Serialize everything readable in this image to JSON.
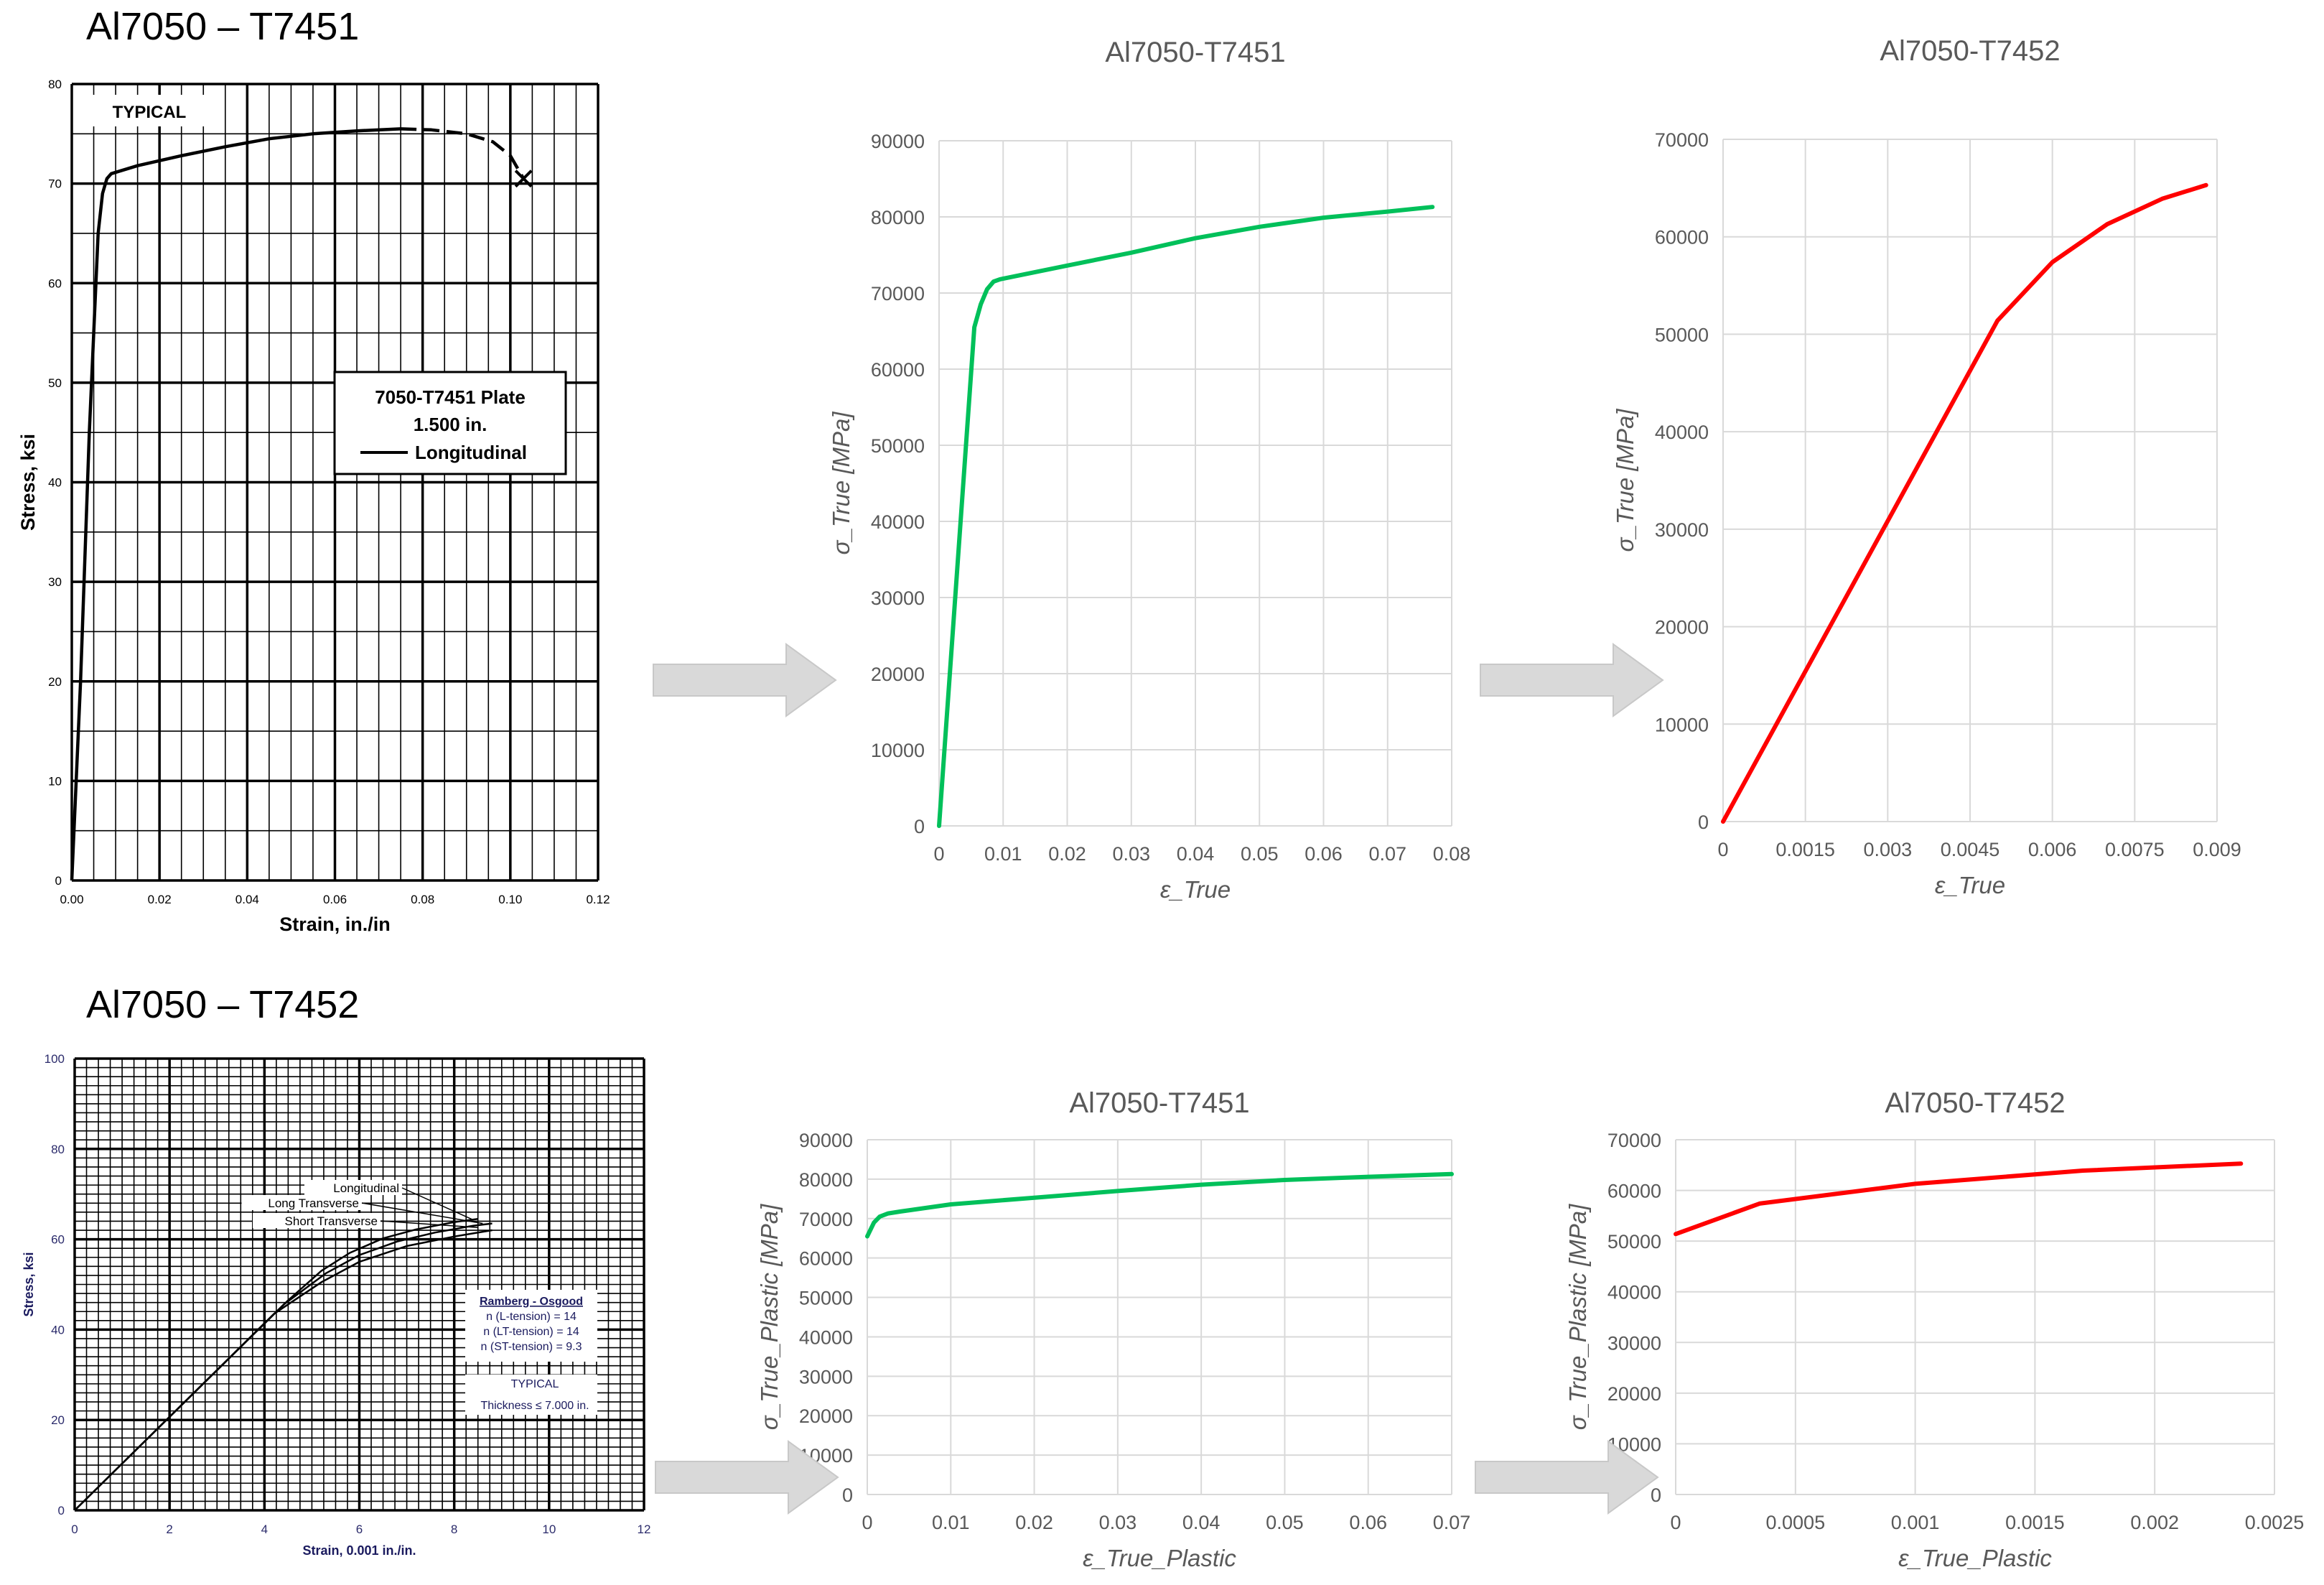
{
  "headings": {
    "top": "Al7050 – T7451",
    "bottom": "Al7050 – T7452"
  },
  "colors": {
    "green": "#00c05a",
    "red": "#ff0000",
    "arrow": "#d9d9d9",
    "excel_grid": "#d9d9d9",
    "excel_text": "#595959"
  },
  "chart_data": [
    {
      "id": "scan_t7451",
      "type": "line",
      "title": "",
      "xlabel": "Strain, in./in",
      "ylabel": "Stress, ksi",
      "xlim": [
        0,
        0.12
      ],
      "ylim": [
        0,
        80
      ],
      "x_ticks": [
        "0.00",
        "0.02",
        "0.04",
        "0.06",
        "0.08",
        "0.10",
        "0.12"
      ],
      "y_ticks": [
        "0",
        "10",
        "20",
        "30",
        "40",
        "50",
        "60",
        "70",
        "80"
      ],
      "grid": true,
      "annotations": [
        "TYPICAL"
      ],
      "legend_box": [
        "7050-T7451 Plate",
        "1.500 in.",
        "Longitudinal"
      ],
      "series": [
        {
          "style": "solid",
          "x": [
            0,
            0.002,
            0.004,
            0.006,
            0.007,
            0.008,
            0.009,
            0.015,
            0.025,
            0.035,
            0.045,
            0.055,
            0.065,
            0.075
          ],
          "y": [
            0,
            20,
            45,
            65,
            69,
            70.5,
            71,
            71.8,
            72.8,
            73.7,
            74.5,
            75.0,
            75.3,
            75.5
          ]
        },
        {
          "style": "dashed",
          "x": [
            0.075,
            0.082,
            0.09,
            0.096,
            0.1,
            0.103
          ],
          "y": [
            75.5,
            75.4,
            75.0,
            74.2,
            72.8,
            70.5
          ]
        }
      ],
      "fracture": {
        "x": 0.103,
        "y": 70.5
      }
    },
    {
      "id": "true_t7451",
      "type": "line",
      "title": "Al7050-T7451",
      "xlabel": "ε_True",
      "ylabel": "σ_True [MPa]",
      "xlim": [
        0,
        0.08
      ],
      "ylim": [
        0,
        90000
      ],
      "x_ticks": [
        "0",
        "0.01",
        "0.02",
        "0.03",
        "0.04",
        "0.05",
        "0.06",
        "0.07",
        "0.08"
      ],
      "y_ticks": [
        "0",
        "10000",
        "20000",
        "30000",
        "40000",
        "50000",
        "60000",
        "70000",
        "80000",
        "90000"
      ],
      "grid": true,
      "series": [
        {
          "color": "#00c05a",
          "x": [
            0,
            0.0055,
            0.0065,
            0.0075,
            0.0085,
            0.0095,
            0.02,
            0.03,
            0.04,
            0.05,
            0.06,
            0.07,
            0.077
          ],
          "y": [
            0,
            65500,
            68500,
            70500,
            71500,
            71800,
            73600,
            75300,
            77200,
            78700,
            79900,
            80700,
            81300
          ]
        }
      ]
    },
    {
      "id": "elastic_t7452",
      "type": "line",
      "title": "Al7050-T7452",
      "xlabel": "ε_True",
      "ylabel": "σ_True [MPa]",
      "xlim": [
        0,
        0.009
      ],
      "ylim": [
        0,
        70000
      ],
      "x_ticks": [
        "0",
        "0.0015",
        "0.003",
        "0.0045",
        "0.006",
        "0.0075",
        "0.009"
      ],
      "y_ticks": [
        "0",
        "10000",
        "20000",
        "30000",
        "40000",
        "50000",
        "60000",
        "70000"
      ],
      "grid": true,
      "series": [
        {
          "color": "#ff0000",
          "x": [
            0,
            0.005,
            0.006,
            0.007,
            0.008,
            0.0088
          ],
          "y": [
            0,
            51400,
            57400,
            61300,
            63900,
            65300
          ]
        }
      ]
    },
    {
      "id": "scan_t7452",
      "type": "line",
      "title": "",
      "xlabel": "Strain, 0.001 in./in.",
      "ylabel": "Stress, ksi",
      "xlim": [
        0,
        12
      ],
      "ylim": [
        0,
        100
      ],
      "x_ticks": [
        "0",
        "2",
        "4",
        "6",
        "8",
        "10",
        "12"
      ],
      "y_ticks": [
        "0",
        "20",
        "40",
        "60",
        "80",
        "100"
      ],
      "grid": true,
      "legend_lines": [
        "Longitudinal",
        "Long Transverse",
        "Short Transverse"
      ],
      "ro_box": [
        "Ramberg - Osgood",
        "n (L-tension) = 14",
        "n (LT-tension) = 14",
        "n (ST-tension) = 9.3"
      ],
      "typical_box": [
        "TYPICAL",
        "Thickness ≤ 7.000 in."
      ],
      "series": [
        {
          "name": "Longitudinal",
          "x": [
            0,
            4.5,
            5.2,
            5.8,
            6.5,
            7.2,
            8.0,
            8.5
          ],
          "y": [
            0,
            46.5,
            53,
            57,
            60.2,
            62.2,
            63.8,
            64.5
          ]
        },
        {
          "name": "Long Transverse",
          "x": [
            0,
            4.4,
            5.3,
            6.0,
            6.8,
            7.6,
            8.4,
            8.8
          ],
          "y": [
            0,
            45.5,
            52.5,
            56.5,
            59.5,
            61.5,
            63.0,
            63.5
          ]
        },
        {
          "name": "Short Transverse",
          "x": [
            0,
            4.2,
            5.2,
            6.0,
            7.0,
            8.0,
            8.8
          ],
          "y": [
            0,
            43.5,
            50.5,
            55,
            58.5,
            60.6,
            62
          ]
        }
      ]
    },
    {
      "id": "plastic_t7451",
      "type": "line",
      "title": "Al7050-T7451",
      "xlabel": "ε_True_Plastic",
      "ylabel": "σ_True_Plastic [MPa]",
      "xlim": [
        0,
        0.07
      ],
      "ylim": [
        0,
        90000
      ],
      "x_ticks": [
        "0",
        "0.01",
        "0.02",
        "0.03",
        "0.04",
        "0.05",
        "0.06",
        "0.07"
      ],
      "y_ticks": [
        "0",
        "10000",
        "20000",
        "30000",
        "40000",
        "50000",
        "60000",
        "70000",
        "80000",
        "90000"
      ],
      "grid": true,
      "series": [
        {
          "color": "#00c05a",
          "x": [
            0,
            0.0008,
            0.0015,
            0.0025,
            0.004,
            0.01,
            0.02,
            0.03,
            0.04,
            0.05,
            0.06,
            0.07
          ],
          "y": [
            65500,
            69000,
            70500,
            71300,
            71800,
            73600,
            75300,
            77000,
            78600,
            79800,
            80600,
            81300
          ]
        }
      ]
    },
    {
      "id": "plastic_t7452",
      "type": "line",
      "title": "Al7050-T7452",
      "xlabel": "ε_True_Plastic",
      "ylabel": "σ_True_Plastic [MPa]",
      "xlim": [
        0,
        0.0025
      ],
      "ylim": [
        0,
        70000
      ],
      "x_ticks": [
        "0",
        "0.0005",
        "0.001",
        "0.0015",
        "0.002",
        "0.0025"
      ],
      "y_ticks": [
        "0",
        "10000",
        "20000",
        "30000",
        "40000",
        "50000",
        "60000",
        "70000"
      ],
      "grid": true,
      "series": [
        {
          "color": "#ff0000",
          "x": [
            0,
            0.00035,
            0.001,
            0.0017,
            0.00236
          ],
          "y": [
            51400,
            57400,
            61300,
            63900,
            65300
          ]
        }
      ]
    }
  ]
}
